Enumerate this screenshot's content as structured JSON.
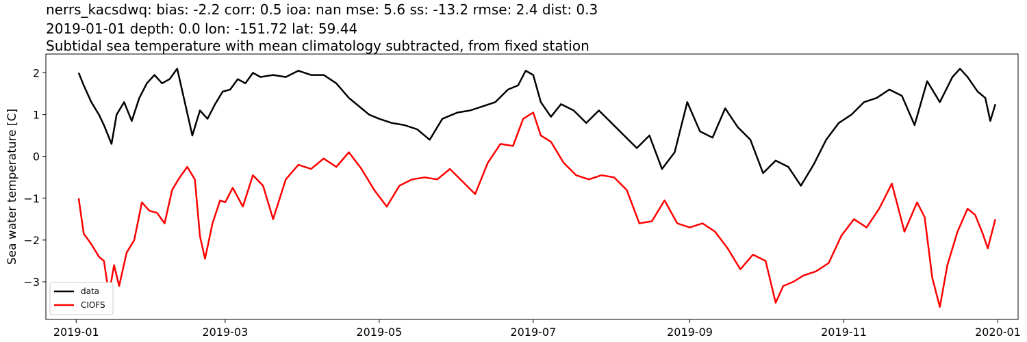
{
  "chart_data": {
    "type": "line",
    "title_lines": [
      "nerrs_kacsdwq: bias: -2.2  corr: 0.5  ioa: nan  mse: 5.6  ss: -13.2  rmse: 2.4  dist: 0.3",
      "2019-01-01 depth: 0.0 lon: -151.72 lat: 59.44",
      "Subtidal sea temperature with mean climatology subtracted, from fixed station"
    ],
    "xlabel": "",
    "ylabel": "Sea water temperature [C]",
    "xlim": [
      "2018-12-20",
      "2020-01-09"
    ],
    "ylim": [
      -3.9,
      2.45
    ],
    "x_ticks": [
      "2019-01",
      "2019-03",
      "2019-05",
      "2019-07",
      "2019-09",
      "2019-11",
      "2020-01"
    ],
    "y_ticks": [
      "2",
      "1",
      "0",
      "−1",
      "−2",
      "−3"
    ],
    "y_tick_values": [
      2,
      1,
      0,
      -1,
      -2,
      -3
    ],
    "legend": {
      "placement": "lower-left",
      "entries": [
        "data",
        "CIOFS"
      ]
    },
    "grid": false,
    "series": [
      {
        "name": "data",
        "color": "#000000",
        "x": [
          "2019-01-02",
          "2019-01-04",
          "2019-01-07",
          "2019-01-10",
          "2019-01-12",
          "2019-01-15",
          "2019-01-17",
          "2019-01-20",
          "2019-01-23",
          "2019-01-26",
          "2019-01-29",
          "2019-02-01",
          "2019-02-04",
          "2019-02-07",
          "2019-02-10",
          "2019-02-13",
          "2019-02-16",
          "2019-02-19",
          "2019-02-22",
          "2019-02-25",
          "2019-02-28",
          "2019-03-03",
          "2019-03-06",
          "2019-03-09",
          "2019-03-12",
          "2019-03-15",
          "2019-03-20",
          "2019-03-25",
          "2019-03-30",
          "2019-04-04",
          "2019-04-09",
          "2019-04-14",
          "2019-04-19",
          "2019-04-23",
          "2019-04-27",
          "2019-05-01",
          "2019-05-06",
          "2019-05-11",
          "2019-05-16",
          "2019-05-21",
          "2019-05-26",
          "2019-06-01",
          "2019-06-06",
          "2019-06-11",
          "2019-06-16",
          "2019-06-21",
          "2019-06-25",
          "2019-06-28",
          "2019-07-01",
          "2019-07-04",
          "2019-07-08",
          "2019-07-12",
          "2019-07-17",
          "2019-07-22",
          "2019-07-27",
          "2019-08-01",
          "2019-08-06",
          "2019-08-11",
          "2019-08-16",
          "2019-08-21",
          "2019-08-26",
          "2019-08-31",
          "2019-09-05",
          "2019-09-10",
          "2019-09-15",
          "2019-09-20",
          "2019-09-25",
          "2019-09-30",
          "2019-10-05",
          "2019-10-10",
          "2019-10-15",
          "2019-10-20",
          "2019-10-25",
          "2019-10-30",
          "2019-11-04",
          "2019-11-09",
          "2019-11-14",
          "2019-11-19",
          "2019-11-24",
          "2019-11-29",
          "2019-12-04",
          "2019-12-09",
          "2019-12-14",
          "2019-12-17",
          "2019-12-20",
          "2019-12-24",
          "2019-12-27",
          "2019-12-29",
          "2019-12-31"
        ],
        "values": [
          2.0,
          1.7,
          1.3,
          1.0,
          0.75,
          0.3,
          1.0,
          1.3,
          0.85,
          1.4,
          1.75,
          1.95,
          1.75,
          1.85,
          2.1,
          1.3,
          0.5,
          1.1,
          0.9,
          1.25,
          1.55,
          1.6,
          1.85,
          1.75,
          2.0,
          1.9,
          1.95,
          1.9,
          2.05,
          1.95,
          1.95,
          1.75,
          1.4,
          1.2,
          1.0,
          0.9,
          0.8,
          0.75,
          0.65,
          0.4,
          0.9,
          1.05,
          1.1,
          1.2,
          1.3,
          1.6,
          1.7,
          2.05,
          1.95,
          1.3,
          0.95,
          1.25,
          1.1,
          0.8,
          1.1,
          0.8,
          0.5,
          0.2,
          0.5,
          -0.3,
          0.1,
          1.3,
          0.6,
          0.45,
          1.15,
          0.7,
          0.4,
          -0.4,
          -0.1,
          -0.25,
          -0.7,
          -0.2,
          0.4,
          0.8,
          1.0,
          1.3,
          1.4,
          1.6,
          1.45,
          0.75,
          1.8,
          1.3,
          1.9,
          2.1,
          1.9,
          1.55,
          1.4,
          0.85,
          1.25
        ]
      },
      {
        "name": "CIOFS",
        "color": "#ff0000",
        "x": [
          "2019-01-02",
          "2019-01-04",
          "2019-01-07",
          "2019-01-10",
          "2019-01-12",
          "2019-01-14",
          "2019-01-16",
          "2019-01-18",
          "2019-01-21",
          "2019-01-24",
          "2019-01-27",
          "2019-01-30",
          "2019-02-02",
          "2019-02-05",
          "2019-02-08",
          "2019-02-11",
          "2019-02-14",
          "2019-02-17",
          "2019-02-19",
          "2019-02-21",
          "2019-02-24",
          "2019-02-27",
          "2019-03-01",
          "2019-03-04",
          "2019-03-08",
          "2019-03-12",
          "2019-03-16",
          "2019-03-20",
          "2019-03-25",
          "2019-03-30",
          "2019-04-04",
          "2019-04-09",
          "2019-04-14",
          "2019-04-19",
          "2019-04-24",
          "2019-04-29",
          "2019-05-04",
          "2019-05-09",
          "2019-05-14",
          "2019-05-19",
          "2019-05-24",
          "2019-05-29",
          "2019-06-03",
          "2019-06-08",
          "2019-06-13",
          "2019-06-18",
          "2019-06-23",
          "2019-06-27",
          "2019-07-01",
          "2019-07-04",
          "2019-07-08",
          "2019-07-13",
          "2019-07-18",
          "2019-07-23",
          "2019-07-28",
          "2019-08-02",
          "2019-08-07",
          "2019-08-12",
          "2019-08-17",
          "2019-08-22",
          "2019-08-27",
          "2019-09-01",
          "2019-09-06",
          "2019-09-11",
          "2019-09-16",
          "2019-09-21",
          "2019-09-26",
          "2019-10-01",
          "2019-10-05",
          "2019-10-08",
          "2019-10-12",
          "2019-10-16",
          "2019-10-21",
          "2019-10-26",
          "2019-10-31",
          "2019-11-05",
          "2019-11-10",
          "2019-11-15",
          "2019-11-20",
          "2019-11-25",
          "2019-11-30",
          "2019-12-03",
          "2019-12-06",
          "2019-12-09",
          "2019-12-12",
          "2019-12-16",
          "2019-12-20",
          "2019-12-23",
          "2019-12-26",
          "2019-12-28",
          "2019-12-31"
        ],
        "values": [
          -1.0,
          -1.85,
          -2.1,
          -2.4,
          -2.5,
          -3.3,
          -2.6,
          -3.1,
          -2.3,
          -2.0,
          -1.1,
          -1.3,
          -1.35,
          -1.6,
          -0.8,
          -0.5,
          -0.25,
          -0.55,
          -1.9,
          -2.45,
          -1.6,
          -1.05,
          -1.1,
          -0.75,
          -1.2,
          -0.45,
          -0.7,
          -1.5,
          -0.55,
          -0.2,
          -0.3,
          -0.05,
          -0.25,
          0.1,
          -0.3,
          -0.8,
          -1.2,
          -0.7,
          -0.55,
          -0.5,
          -0.55,
          -0.3,
          -0.6,
          -0.9,
          -0.15,
          0.3,
          0.25,
          0.9,
          1.05,
          0.5,
          0.35,
          -0.15,
          -0.45,
          -0.55,
          -0.45,
          -0.5,
          -0.8,
          -1.6,
          -1.55,
          -1.05,
          -1.6,
          -1.7,
          -1.6,
          -1.8,
          -2.2,
          -2.7,
          -2.35,
          -2.5,
          -3.5,
          -3.1,
          -3.0,
          -2.85,
          -2.75,
          -2.55,
          -1.9,
          -1.5,
          -1.7,
          -1.25,
          -0.65,
          -1.8,
          -1.1,
          -1.45,
          -2.9,
          -3.6,
          -2.6,
          -1.8,
          -1.25,
          -1.4,
          -1.85,
          -2.2,
          -1.5
        ]
      }
    ]
  }
}
